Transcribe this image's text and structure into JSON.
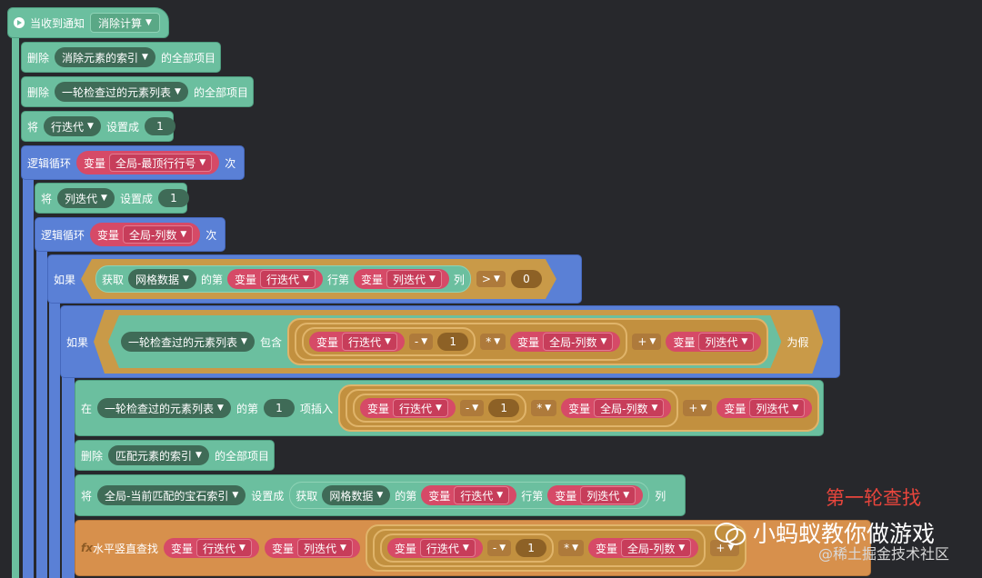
{
  "event_block": {
    "label": "当收到通知",
    "dropdown": "消除计算"
  },
  "delete1": {
    "verb": "删除",
    "list": "消除元素的索引",
    "suffix": "的全部项目"
  },
  "delete2": {
    "verb": "删除",
    "list": "一轮检查过的元素列表",
    "suffix": "的全部项目"
  },
  "set_row": {
    "verb": "将",
    "var": "行迭代",
    "mid": "设置成",
    "value": "1"
  },
  "loop1": {
    "label": "逻辑循环",
    "kind": "变量",
    "var": "全局-最顶行行号",
    "suffix": "次"
  },
  "set_col": {
    "verb": "将",
    "var": "列迭代",
    "mid": "设置成",
    "value": "1"
  },
  "loop2": {
    "label": "逻辑循环",
    "kind": "变量",
    "var": "全局-列数",
    "suffix": "次"
  },
  "if1": {
    "label": "如果",
    "get": "获取",
    "grid": "网格数据",
    "di": "的第",
    "kind": "变量",
    "row_var": "行迭代",
    "row_label": "行第",
    "col_var": "列迭代",
    "col_label": "列",
    "op": ">",
    "value": "0"
  },
  "if2": {
    "label": "如果",
    "list": "一轮检查过的元素列表",
    "contains": "包含",
    "kind": "变量",
    "row_var": "行迭代",
    "minus": "-",
    "one": "1",
    "times": "*",
    "cols": "全局-列数",
    "plus": "+",
    "col_var": "列迭代",
    "suffix": "为假"
  },
  "insert": {
    "at": "在",
    "list": "一轮检查过的元素列表",
    "di": "的第",
    "pos": "1",
    "action": "项插入",
    "kind": "变量",
    "row_var": "行迭代",
    "minus": "-",
    "one": "1",
    "times": "*",
    "cols": "全局-列数",
    "plus": "+",
    "col_var": "列迭代"
  },
  "delete3": {
    "verb": "删除",
    "list": "匹配元素的索引",
    "suffix": "的全部项目"
  },
  "set_match": {
    "verb": "将",
    "var": "全局-当前匹配的宝石索引",
    "mid": "设置成",
    "get": "获取",
    "grid": "网格数据",
    "di": "的第",
    "kind": "变量",
    "row_var": "行迭代",
    "row_label": "行第",
    "col_var": "列迭代",
    "col_label": "列"
  },
  "func": {
    "icon": "fx",
    "name": "水平竖直查找",
    "kind": "变量",
    "row_var": "行迭代",
    "col_var": "列迭代",
    "minus": "-",
    "one": "1",
    "times": "*",
    "cols": "全局-列数",
    "plus": "+"
  },
  "annotation": "第一轮查找",
  "watermark_main": "小蚂蚁教你做游戏",
  "watermark_sub": "@稀土掘金技术社区",
  "colors": {
    "event": "#6bbf9f",
    "loop": "#5a80d6",
    "var": "#d64a67",
    "func": "#d7904c",
    "annotation": "#e8453c"
  }
}
